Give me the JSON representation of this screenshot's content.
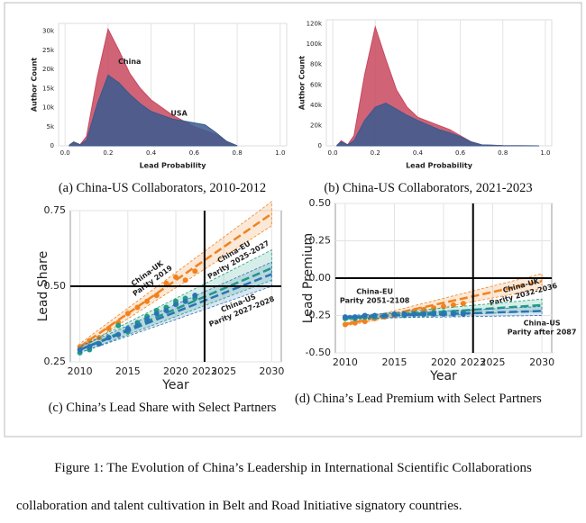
{
  "chart_data": [
    {
      "type": "area",
      "caption": "(a) China-US Collaborators, 2010-2012",
      "x_label": "Lead Probability",
      "y_label": "Author Count",
      "x": [
        0.02,
        0.04,
        0.07,
        0.1,
        0.15,
        0.2,
        0.25,
        0.3,
        0.35,
        0.4,
        0.5,
        0.6,
        0.65,
        0.7,
        0.75,
        0.8
      ],
      "series": [
        {
          "name": "China",
          "color": "#c9485f",
          "values": [
            200,
            1000,
            300,
            2500,
            18000,
            30500,
            25000,
            19000,
            15000,
            12000,
            8000,
            5000,
            4000,
            3000,
            1200,
            0
          ]
        },
        {
          "name": "USA",
          "color": "#3a5a8e",
          "values": [
            200,
            1000,
            300,
            1500,
            11000,
            18500,
            16500,
            13500,
            11000,
            9000,
            7000,
            6000,
            5500,
            3500,
            1200,
            0
          ]
        }
      ],
      "xlim": [
        -0.03,
        1.03
      ],
      "ylim": [
        0,
        32000
      ],
      "xticks": [
        {
          "value": 0,
          "label": "0.0"
        },
        0.2,
        0.4,
        0.6,
        0.8,
        {
          "value": 1,
          "label": "1.0"
        }
      ],
      "yticks": [
        0,
        {
          "value": 5000,
          "label": "5k"
        },
        {
          "value": 10000,
          "label": "10k"
        },
        {
          "value": 15000,
          "label": "15k"
        },
        {
          "value": 20000,
          "label": "20k"
        },
        {
          "value": 25000,
          "label": "25k"
        },
        {
          "value": 30000,
          "label": "30k"
        }
      ],
      "grid": true
    },
    {
      "type": "area",
      "caption": "(b) China-US Collaborators, 2021-2023",
      "x_label": "Lead Probability",
      "y_label": "Author Count",
      "x": [
        0.02,
        0.04,
        0.07,
        0.1,
        0.15,
        0.2,
        0.25,
        0.3,
        0.35,
        0.4,
        0.5,
        0.55,
        0.6,
        0.65,
        0.7,
        0.8,
        0.97
      ],
      "series": [
        {
          "color": "#c9485f",
          "values": [
            500,
            5000,
            1000,
            10000,
            70000,
            117000,
            85000,
            55000,
            38000,
            28000,
            20000,
            16000,
            10000,
            4000,
            1000,
            200,
            0
          ]
        },
        {
          "color": "#3a5a8e",
          "values": [
            500,
            4000,
            1000,
            5000,
            25000,
            38000,
            42000,
            36000,
            30000,
            25000,
            16000,
            13000,
            9000,
            4000,
            1000,
            200,
            0
          ]
        }
      ],
      "xlim": [
        -0.03,
        1.03
      ],
      "ylim": [
        0,
        124000
      ],
      "xticks": [
        {
          "value": 0,
          "label": "0.0"
        },
        0.2,
        0.4,
        0.6,
        0.8,
        {
          "value": 1,
          "label": "1.0"
        }
      ],
      "yticks": [
        0,
        {
          "value": 20000,
          "label": "20k"
        },
        {
          "value": 40000,
          "label": "40k"
        },
        {
          "value": 60000,
          "label": "60k"
        },
        {
          "value": 80000,
          "label": "80k"
        },
        {
          "value": 100000,
          "label": "100k"
        },
        {
          "value": 120000,
          "label": "120k"
        }
      ],
      "grid": true
    },
    {
      "type": "scatter",
      "caption": "(c) China’s Lead Share with Select Partners",
      "x_label": "Year",
      "y_label": "Lead Share",
      "x": [
        2010,
        2011,
        2012,
        2013,
        2014,
        2015,
        2016,
        2017,
        2018,
        2019,
        2020,
        2021,
        2022
      ],
      "series": [
        {
          "name": "China-UK",
          "label": "Parity 2019",
          "color": "#f0821e",
          "values": [
            0.3,
            0.32,
            0.33,
            0.36,
            0.38,
            0.41,
            0.43,
            0.45,
            0.47,
            0.51,
            0.53,
            0.52,
            0.55
          ],
          "fit": {
            "x": [
              2010,
              2030
            ],
            "values": [
              0.3,
              0.74
            ],
            "low": [
              0.29,
              0.7
            ],
            "high": [
              0.31,
              0.78
            ]
          }
        },
        {
          "name": "China-EU",
          "label": "Parity 2025-2027",
          "color": "#1f9e80",
          "values": [
            0.28,
            0.29,
            0.31,
            0.33,
            0.37,
            0.35,
            0.38,
            0.4,
            0.42,
            0.43,
            0.45,
            0.46,
            0.46
          ],
          "fit": {
            "x": [
              2010,
              2030
            ],
            "values": [
              0.29,
              0.56
            ],
            "low": [
              0.28,
              0.52
            ],
            "high": [
              0.3,
              0.62
            ]
          }
        },
        {
          "name": "China-US",
          "label": "Parity 2027-2028",
          "color": "#2b74b4",
          "values": [
            0.29,
            0.3,
            0.31,
            0.33,
            0.34,
            0.36,
            0.37,
            0.39,
            0.41,
            0.42,
            0.44,
            0.45,
            0.47
          ],
          "fit": {
            "x": [
              2010,
              2030
            ],
            "values": [
              0.29,
              0.54
            ],
            "low": [
              0.28,
              0.5
            ],
            "high": [
              0.3,
              0.58
            ]
          }
        }
      ],
      "xlim": [
        2009,
        2031
      ],
      "ylim": [
        0.25,
        0.75
      ],
      "xticks": [
        2010,
        2015,
        2020,
        2023,
        2025,
        2030
      ],
      "yticks": [
        0.25,
        {
          "value": 0.5,
          "label": "0.50"
        },
        0.75
      ],
      "vline": 2023,
      "hline": 0.5,
      "grid": true
    },
    {
      "type": "scatter",
      "caption": "(d) China’s Lead Premium with Select Partners",
      "x_label": "Year",
      "y_label": "Lead Premium",
      "x": [
        2010,
        2011,
        2012,
        2013,
        2014,
        2015,
        2016,
        2017,
        2018,
        2019,
        2020,
        2021,
        2022
      ],
      "series": [
        {
          "name": "China-UK",
          "label": "Parity 2032-2036",
          "color": "#f0821e",
          "values": [
            -0.31,
            -0.3,
            -0.29,
            -0.27,
            -0.26,
            -0.25,
            -0.24,
            -0.22,
            -0.21,
            -0.2,
            -0.19,
            -0.18,
            -0.17
          ],
          "fit": {
            "x": [
              2010,
              2030
            ],
            "values": [
              -0.31,
              -0.02
            ],
            "low": [
              -0.32,
              -0.07
            ],
            "high": [
              -0.3,
              0.03
            ]
          }
        },
        {
          "name": "China-EU",
          "label": "Parity 2051-2108",
          "color": "#1f9e80",
          "values": [
            -0.27,
            -0.27,
            -0.26,
            -0.26,
            -0.25,
            -0.24,
            -0.25,
            -0.24,
            -0.24,
            -0.23,
            -0.23,
            -0.23,
            -0.23
          ],
          "fit": {
            "x": [
              2010,
              2030
            ],
            "values": [
              -0.27,
              -0.18
            ],
            "low": [
              -0.28,
              -0.22
            ],
            "high": [
              -0.26,
              -0.14
            ]
          }
        },
        {
          "name": "China-US",
          "label": "Parity after 2087",
          "color": "#2b74b4",
          "values": [
            -0.26,
            -0.26,
            -0.25,
            -0.25,
            -0.25,
            -0.24,
            -0.24,
            -0.24,
            -0.24,
            -0.24,
            -0.24,
            -0.24,
            -0.24
          ],
          "fit": {
            "x": [
              2010,
              2030
            ],
            "values": [
              -0.26,
              -0.22
            ],
            "low": [
              -0.27,
              -0.25
            ],
            "high": [
              -0.25,
              -0.19
            ]
          }
        }
      ],
      "xlim": [
        2009,
        2031
      ],
      "ylim": [
        -0.5,
        0.5
      ],
      "xticks": [
        2010,
        2015,
        2020,
        2023,
        2025,
        2030
      ],
      "yticks": [
        {
          "value": -0.5,
          "label": "-0.50"
        },
        -0.25,
        {
          "value": 0,
          "label": "0.00"
        },
        0.25,
        {
          "value": 0.5,
          "label": "0.50"
        }
      ],
      "vline": 2023,
      "hline": 0,
      "grid": true
    }
  ],
  "figure_caption": "Figure 1: The Evolution of China’s Leadership in International Scientific Collaborations",
  "body_text": "collaboration and talent cultivation in Belt and Road Initiative signatory countries."
}
